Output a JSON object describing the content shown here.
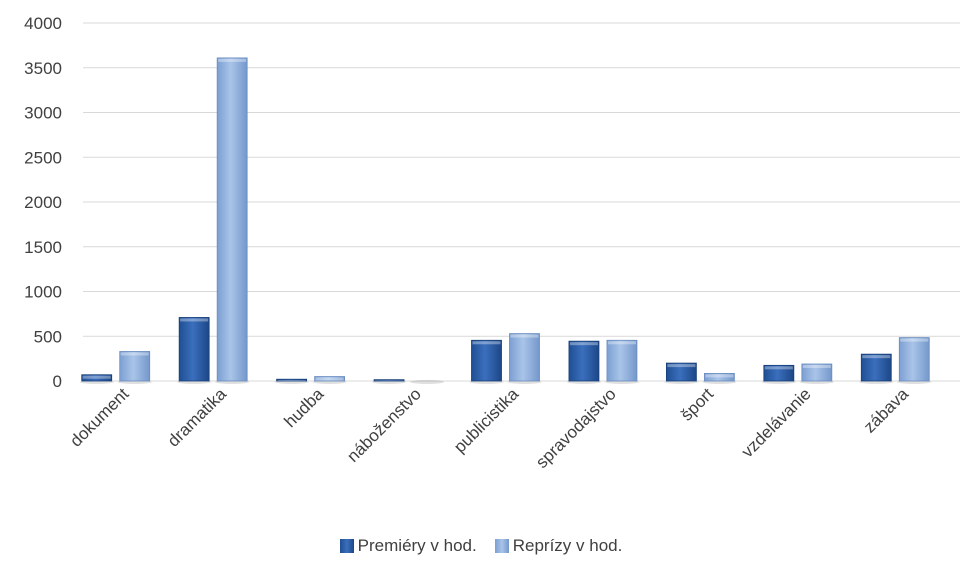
{
  "chart_data": {
    "type": "bar",
    "categories": [
      "dokument",
      "dramatika",
      "hudba",
      "náboženstvo",
      "publicistika",
      "spravodajstvo",
      "šport",
      "vzdelávanie",
      "zábava"
    ],
    "series": [
      {
        "name": "Premiéry v hod.",
        "values": [
          70,
          710,
          20,
          15,
          455,
          445,
          200,
          175,
          300
        ],
        "color": "#2d5fa8"
      },
      {
        "name": "Reprízy v hod.",
        "values": [
          330,
          3610,
          50,
          0,
          530,
          455,
          85,
          190,
          485
        ],
        "color": "#8fb0dc"
      }
    ],
    "ylim": [
      0,
      4000
    ],
    "yticks": [
      0,
      500,
      1000,
      1500,
      2000,
      2500,
      3000,
      3500,
      4000
    ],
    "grid": true,
    "legend": "bottom"
  }
}
